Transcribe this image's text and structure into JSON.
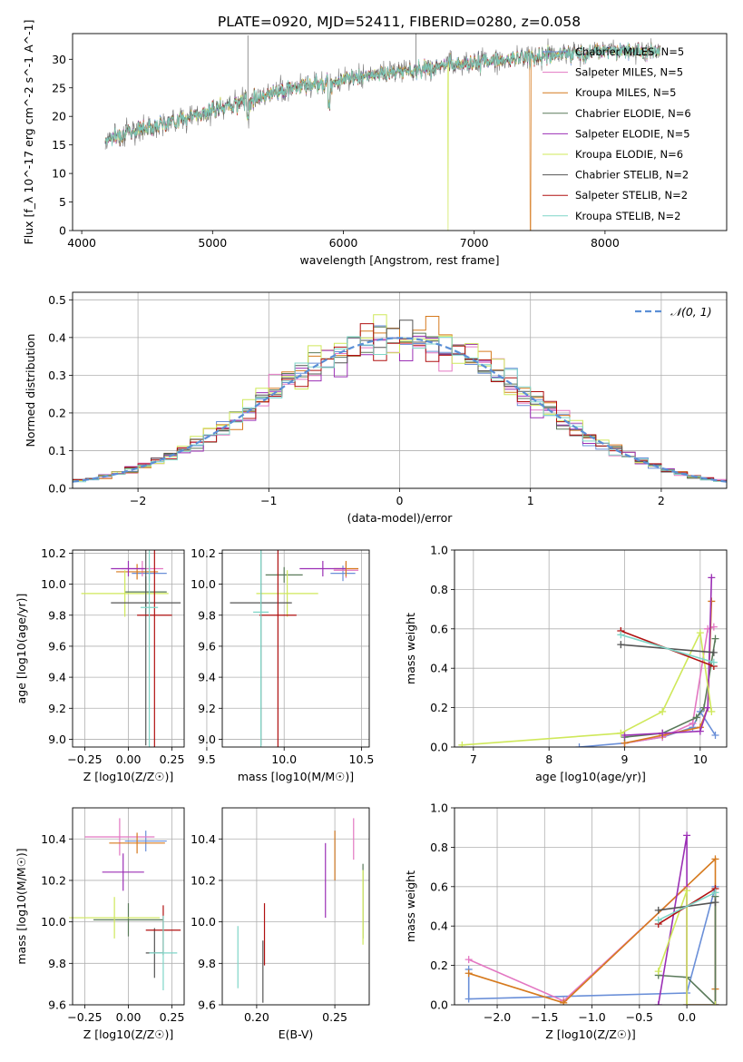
{
  "title": "PLATE=0920, MJD=52411, FIBERID=0280, z=0.058",
  "colors": [
    "#6a8fd8",
    "#e377c2",
    "#d67a1e",
    "#5a7a5a",
    "#9b2fb5",
    "#cfe85a",
    "#555555",
    "#b01010",
    "#7fd6c8"
  ],
  "chart_data": [
    {
      "type": "line",
      "title": "PLATE=0920, MJD=52411, FIBERID=0280, z=0.058",
      "xlabel": "wavelength [Angstrom, rest frame]",
      "ylabel": "Flux [f_λ 10^-17 erg cm^-2 s^-1 A^-1]",
      "xlim": [
        3930,
        8930
      ],
      "ylim": [
        0,
        34.5
      ],
      "xticks": [
        "4000",
        "5000",
        "6000",
        "7000",
        "8000"
      ],
      "yticks": [
        "0",
        "5",
        "10",
        "15",
        "20",
        "25",
        "30"
      ],
      "legend_position": "top-right",
      "series": [
        {
          "name": "Chabrier MILES, N_SSP=5"
        },
        {
          "name": "Salpeter MILES, N_SSP=5"
        },
        {
          "name": "Kroupa MILES, N_SSP=5"
        },
        {
          "name": "Chabrier ELODIE, N_SSP=6"
        },
        {
          "name": "Salpeter ELODIE, N_SSP=5"
        },
        {
          "name": "Kroupa ELODIE, N_SSP=6"
        },
        {
          "name": "Chabrier STELIB, N_SSP=2"
        },
        {
          "name": "Salpeter STELIB, N_SSP=2"
        },
        {
          "name": "Kroupa STELIB, N_SSP=2"
        }
      ],
      "continuum": {
        "x": [
          4180,
          4400,
          5000,
          5500,
          6000,
          6500,
          7000,
          7500,
          8000,
          8400
        ],
        "y": [
          16,
          17.5,
          21,
          24.5,
          26.5,
          28,
          29.5,
          30.5,
          31.5,
          31.5
        ]
      },
      "drops": [
        {
          "x": 6800,
          "series": "Kroupa ELODIE, N_SSP=6"
        },
        {
          "x": 7430,
          "series": "Kroupa MILES, N_SSP=5"
        }
      ]
    },
    {
      "type": "line",
      "xlabel": "(data-model)/error",
      "ylabel": "Normed distribution",
      "xlim": [
        -2.5,
        2.5
      ],
      "ylim": [
        0,
        0.52
      ],
      "xticks": [
        "−2",
        "−1",
        "0",
        "1",
        "2"
      ],
      "yticks": [
        "0.0",
        "0.1",
        "0.2",
        "0.3",
        "0.4",
        "0.5"
      ],
      "legend": "𝒩(0, 1)",
      "legend_position": "top-right",
      "grid": true,
      "bin_width": 0.1
    },
    {
      "type": "scatter",
      "xlabel": "Z [log10(Z/Z☉)]",
      "ylabel": "age [log10(age/yr)]",
      "xlim": [
        -0.32,
        0.32
      ],
      "ylim": [
        8.95,
        10.22
      ],
      "xticks": [
        "−0.25",
        "0.00",
        "0.25"
      ],
      "yticks": [
        "9.0",
        "9.2",
        "9.4",
        "9.6",
        "9.8",
        "10.0",
        "10.2"
      ],
      "points": [
        {
          "x": 0.12,
          "y": 10.07,
          "xerr": 0.1,
          "yerr": 0.05
        },
        {
          "x": 0.08,
          "y": 10.1,
          "xerr": 0.12,
          "yerr": 0.05
        },
        {
          "x": 0.05,
          "y": 10.08,
          "xerr": 0.12,
          "yerr": 0.05
        },
        {
          "x": 0.1,
          "y": 9.95,
          "xerr": 0.12,
          "yerr": 0.1
        },
        {
          "x": 0.0,
          "y": 10.1,
          "xerr": 0.1,
          "yerr": 0.05
        },
        {
          "x": -0.02,
          "y": 9.94,
          "xerr": 0.25,
          "yerr": 0.15
        },
        {
          "x": 0.1,
          "y": 9.88,
          "xerr": 0.2,
          "yerr": 0.92
        },
        {
          "x": 0.15,
          "y": 9.8,
          "xerr": 0.1,
          "yerr": 0.85
        },
        {
          "x": 0.12,
          "y": 9.85,
          "xerr": 0.05,
          "yerr": 0.9
        }
      ]
    },
    {
      "type": "scatter",
      "xlabel": "mass [log10(M/M☉)]",
      "xlim": [
        9.6,
        10.55
      ],
      "ylim": [
        8.95,
        10.22
      ],
      "xticks": [
        "9.5",
        "10.0",
        "10.5"
      ],
      "yticks": [
        "9.0",
        "9.2",
        "9.4",
        "9.6",
        "9.8",
        "10.0",
        "10.2"
      ],
      "points": [
        {
          "x": 10.38,
          "y": 10.07,
          "xerr": 0.08,
          "yerr": 0.05
        },
        {
          "x": 10.4,
          "y": 10.09,
          "xerr": 0.08,
          "yerr": 0.05
        },
        {
          "x": 10.4,
          "y": 10.1,
          "xerr": 0.08,
          "yerr": 0.05
        },
        {
          "x": 10.0,
          "y": 10.06,
          "xerr": 0.12,
          "yerr": 0.05
        },
        {
          "x": 10.25,
          "y": 10.1,
          "xerr": 0.15,
          "yerr": 0.05
        },
        {
          "x": 10.02,
          "y": 9.94,
          "xerr": 0.2,
          "yerr": 0.15
        },
        {
          "x": 9.85,
          "y": 9.88,
          "xerr": 0.2,
          "yerr": 0.92
        },
        {
          "x": 9.96,
          "y": 9.8,
          "xerr": 0.12,
          "yerr": 0.85
        },
        {
          "x": 9.85,
          "y": 9.82,
          "xerr": 0.05,
          "yerr": 0.9
        }
      ]
    },
    {
      "type": "line",
      "xlabel": "age [log10(age/yr)]",
      "ylabel": "mass weight",
      "xlim": [
        6.75,
        10.35
      ],
      "ylim": [
        0,
        1.0
      ],
      "xticks": [
        "7",
        "8",
        "9",
        "10"
      ],
      "yticks": [
        "0.0",
        "0.2",
        "0.4",
        "0.6",
        "0.8",
        "1.0"
      ],
      "series": [
        {
          "x": [
            8.4,
            9.0,
            9.5,
            9.9,
            10.0,
            10.2
          ],
          "y": [
            0.0,
            0.02,
            0.05,
            0.1,
            0.18,
            0.06
          ]
        },
        {
          "x": [
            9.0,
            9.5,
            9.9,
            10.1,
            10.18
          ],
          "y": [
            0.02,
            0.05,
            0.12,
            0.6,
            0.61
          ]
        },
        {
          "x": [
            9.0,
            9.5,
            10.0,
            10.1,
            10.15
          ],
          "y": [
            0.02,
            0.06,
            0.1,
            0.2,
            0.74
          ]
        },
        {
          "x": [
            9.0,
            9.5,
            9.95,
            10.05,
            10.2
          ],
          "y": [
            0.05,
            0.07,
            0.15,
            0.2,
            0.55
          ]
        },
        {
          "x": [
            9.0,
            9.5,
            10.0,
            10.1,
            10.15
          ],
          "y": [
            0.06,
            0.07,
            0.08,
            0.2,
            0.86
          ]
        },
        {
          "x": [
            6.85,
            8.95,
            9.5,
            10.0,
            10.15
          ],
          "y": [
            0.01,
            0.07,
            0.18,
            0.58,
            0.18
          ]
        },
        {
          "x": [
            8.95,
            10.18
          ],
          "y": [
            0.52,
            0.48
          ]
        },
        {
          "x": [
            8.95,
            10.18
          ],
          "y": [
            0.59,
            0.41
          ]
        },
        {
          "x": [
            8.95,
            10.18
          ],
          "y": [
            0.57,
            0.43
          ]
        }
      ]
    },
    {
      "type": "scatter",
      "xlabel": "Z [log10(Z/Z☉)]",
      "ylabel": "mass [log10(M/M☉)]",
      "xlim": [
        -0.32,
        0.32
      ],
      "ylim": [
        9.6,
        10.55
      ],
      "xticks": [
        "−0.25",
        "0.00",
        "0.25"
      ],
      "yticks": [
        "9.6",
        "9.8",
        "10.0",
        "10.2",
        "10.4"
      ],
      "points": [
        {
          "x": 0.1,
          "y": 10.39,
          "xerr": 0.12,
          "yerr": 0.05
        },
        {
          "x": -0.05,
          "y": 10.41,
          "xerr": 0.2,
          "yerr": 0.09
        },
        {
          "x": 0.05,
          "y": 10.38,
          "xerr": 0.16,
          "yerr": 0.05
        },
        {
          "x": 0.0,
          "y": 10.01,
          "xerr": 0.2,
          "yerr": 0.08
        },
        {
          "x": -0.03,
          "y": 10.24,
          "xerr": 0.12,
          "yerr": 0.09
        },
        {
          "x": -0.08,
          "y": 10.02,
          "xerr": 0.26,
          "yerr": 0.1
        },
        {
          "x": 0.15,
          "y": 9.85,
          "xerr": 0.05,
          "yerr": 0.12
        },
        {
          "x": 0.2,
          "y": 9.96,
          "xerr": 0.1,
          "yerr": 0.12
        },
        {
          "x": 0.2,
          "y": 9.85,
          "xerr": 0.08,
          "yerr": 0.18
        }
      ]
    },
    {
      "type": "scatter",
      "xlabel": "E(B-V)",
      "xlim": [
        0.178,
        0.272
      ],
      "ylim": [
        9.6,
        10.55
      ],
      "xticks": [
        "0.20",
        "0.25"
      ],
      "yticks": [
        "9.6",
        "9.8",
        "10.0",
        "10.2",
        "10.4"
      ],
      "points": [
        {
          "x": 0.25,
          "y": 10.32,
          "yerr": 0.12
        },
        {
          "x": 0.262,
          "y": 10.4,
          "yerr": 0.1
        },
        {
          "x": 0.25,
          "y": 10.32,
          "yerr": 0.12
        },
        {
          "x": 0.268,
          "y": 10.1,
          "yerr": 0.18
        },
        {
          "x": 0.244,
          "y": 10.2,
          "yerr": 0.18
        },
        {
          "x": 0.268,
          "y": 10.07,
          "yerr": 0.18
        },
        {
          "x": 0.204,
          "y": 9.76,
          "yerr": 0.15
        },
        {
          "x": 0.205,
          "y": 9.94,
          "yerr": 0.15
        },
        {
          "x": 0.188,
          "y": 9.83,
          "yerr": 0.15
        }
      ]
    },
    {
      "type": "line",
      "xlabel": "Z [log10(Z/Z☉)]",
      "ylabel": "mass weight",
      "xlim": [
        -2.45,
        0.42
      ],
      "ylim": [
        0,
        1.0
      ],
      "xticks": [
        "−2.0",
        "−1.5",
        "−1.0",
        "−0.5",
        "0.0"
      ],
      "yticks": [
        "0.0",
        "0.2",
        "0.4",
        "0.6",
        "0.8",
        "1.0"
      ],
      "series": [
        {
          "x": [
            -2.3,
            -2.3,
            -0.0,
            0.3,
            0.3
          ],
          "y": [
            0.18,
            0.03,
            0.06,
            0.6,
            0.0
          ]
        },
        {
          "x": [
            -2.3,
            -1.3,
            -0.0,
            0.0,
            0.3
          ],
          "y": [
            0.23,
            0.02,
            0.6,
            0.0,
            0.0
          ]
        },
        {
          "x": [
            -2.3,
            -1.3,
            0.3,
            0.3,
            0.3
          ],
          "y": [
            0.16,
            0.01,
            0.74,
            0.08,
            0.0
          ]
        },
        {
          "x": [
            -0.3,
            0.0,
            0.3,
            0.3
          ],
          "y": [
            0.15,
            0.14,
            0.0,
            0.55
          ]
        },
        {
          "x": [
            -0.3,
            -0.0,
            -0.0,
            0.3
          ],
          "y": [
            0.0,
            0.86,
            0.0,
            0.0
          ]
        },
        {
          "x": [
            -0.3,
            0.0,
            0.0,
            0.3
          ],
          "y": [
            0.17,
            0.58,
            0.0,
            0.0
          ]
        },
        {
          "x": [
            -0.3,
            0.3
          ],
          "y": [
            0.48,
            0.52
          ]
        },
        {
          "x": [
            -0.3,
            0.3
          ],
          "y": [
            0.41,
            0.59
          ]
        },
        {
          "x": [
            -0.3,
            0.3
          ],
          "y": [
            0.43,
            0.57
          ]
        }
      ]
    }
  ]
}
